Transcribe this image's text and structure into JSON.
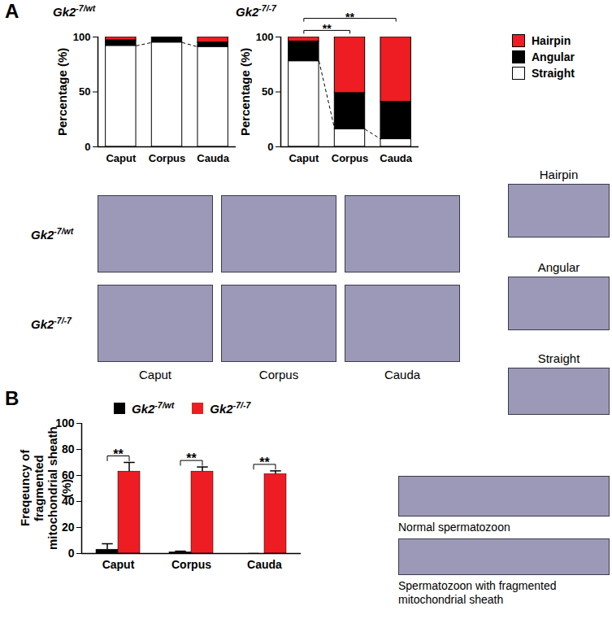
{
  "chart_data": [
    {
      "type": "bar",
      "stacked": true,
      "title": "Gk2-7/wt",
      "ylabel": "Percentage (%)",
      "categories": [
        "Caput",
        "Corpus",
        "Cauda"
      ],
      "ylim": [
        0,
        100
      ],
      "yticks": [
        0,
        50,
        100
      ],
      "series": [
        {
          "name": "Straight",
          "color": "#ffffff",
          "values": [
            92,
            95,
            91
          ]
        },
        {
          "name": "Angular",
          "color": "#000000",
          "values": [
            5,
            5,
            4
          ]
        },
        {
          "name": "Hairpin",
          "color": "#ee1d23",
          "values": [
            3,
            0,
            5
          ]
        }
      ]
    },
    {
      "type": "bar",
      "stacked": true,
      "title": "Gk2-7/-7",
      "ylabel": "Percentage (%)",
      "categories": [
        "Caput",
        "Corpus",
        "Cauda"
      ],
      "ylim": [
        0,
        100
      ],
      "yticks": [
        0,
        50,
        100
      ],
      "legend": "right",
      "series": [
        {
          "name": "Straight",
          "color": "#ffffff",
          "values": [
            78,
            16,
            7
          ]
        },
        {
          "name": "Angular",
          "color": "#000000",
          "values": [
            18,
            33,
            34
          ]
        },
        {
          "name": "Hairpin",
          "color": "#ee1d23",
          "values": [
            4,
            51,
            59
          ]
        }
      ],
      "annotations": [
        {
          "from": "Caput",
          "to": "Corpus",
          "text": "**"
        },
        {
          "from": "Caput",
          "to": "Cauda",
          "text": "**"
        }
      ]
    },
    {
      "type": "bar",
      "ylabel": "Freqeuncy of fragmented mitochondrial sheath (%)",
      "categories": [
        "Caput",
        "Corpus",
        "Cauda"
      ],
      "ylim": [
        0,
        100
      ],
      "yticks": [
        0,
        20,
        40,
        60,
        80,
        100
      ],
      "legend": "top",
      "series": [
        {
          "name": "Gk2-7/wt",
          "color": "#000000",
          "values": [
            3,
            1,
            0
          ],
          "errors": [
            4.5,
            0.8,
            0
          ]
        },
        {
          "name": "Gk2-7/-7",
          "color": "#ee1d23",
          "values": [
            63,
            63,
            61
          ],
          "errors": [
            7,
            3.5,
            2.5
          ]
        }
      ],
      "annotations": [
        {
          "category": "Caput",
          "text": "**"
        },
        {
          "category": "Corpus",
          "text": "**"
        },
        {
          "category": "Cauda",
          "text": "**"
        }
      ]
    }
  ],
  "figure": {
    "panel_labels": [
      "A",
      "B"
    ],
    "image_rows": [
      "Gk2-7/wt",
      "Gk2-7/-7"
    ],
    "image_columns": [
      "Caput",
      "Corpus",
      "Cauda"
    ],
    "example_images": [
      "Hairpin",
      "Angular",
      "Straight"
    ],
    "example_captions": [
      "Normal spermatozoon",
      "Spermatozoon with fragmented mitochondrial sheath"
    ]
  }
}
